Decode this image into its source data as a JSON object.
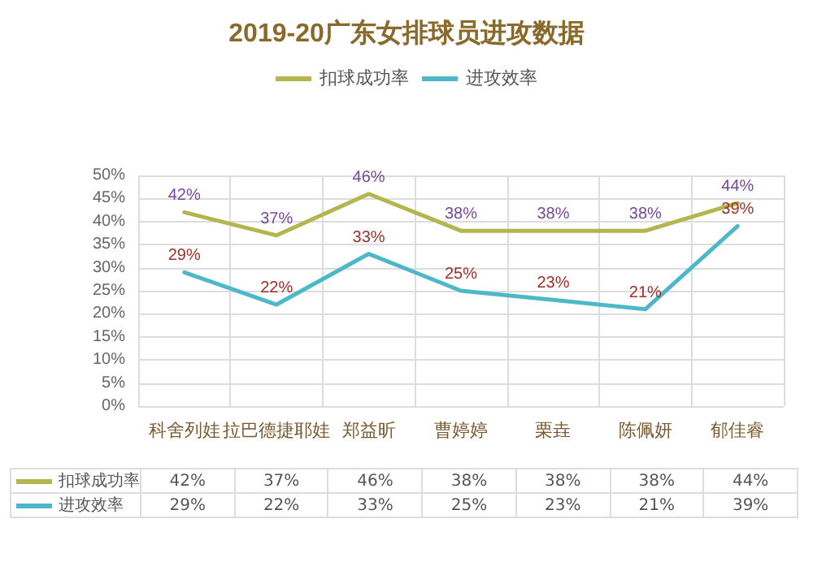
{
  "chart_data": {
    "type": "line",
    "title": "2019-20广东女排球员进攻数据",
    "categories": [
      "科舍列娃",
      "拉巴德捷耶娃",
      "郑益昕",
      "曹婷婷",
      "栗垚",
      "陈佩妍",
      "郁佳睿"
    ],
    "series": [
      {
        "name": "扣球成功率",
        "color": "#b5b550",
        "values": [
          42,
          37,
          46,
          38,
          38,
          38,
          44
        ],
        "value_labels": [
          "42%",
          "37%",
          "46%",
          "38%",
          "38%",
          "38%",
          "44%"
        ]
      },
      {
        "name": "进攻效率",
        "color": "#4fb8c8",
        "values": [
          29,
          22,
          33,
          25,
          23,
          21,
          39
        ],
        "value_labels": [
          "29%",
          "22%",
          "33%",
          "25%",
          "23%",
          "21%",
          "39%"
        ]
      }
    ],
    "ylim": [
      0,
      50
    ],
    "yticks": [
      {
        "value": 0,
        "label": "0%"
      },
      {
        "value": 5,
        "label": "5%"
      },
      {
        "value": 10,
        "label": "10%"
      },
      {
        "value": 15,
        "label": "15%"
      },
      {
        "value": 20,
        "label": "20%"
      },
      {
        "value": 25,
        "label": "25%"
      },
      {
        "value": 30,
        "label": "30%"
      },
      {
        "value": 35,
        "label": "35%"
      },
      {
        "value": 40,
        "label": "40%"
      },
      {
        "value": 45,
        "label": "45%"
      },
      {
        "value": 50,
        "label": "50%"
      }
    ],
    "grid": true,
    "legend": "top",
    "marker": "none",
    "line_style": "solid"
  }
}
